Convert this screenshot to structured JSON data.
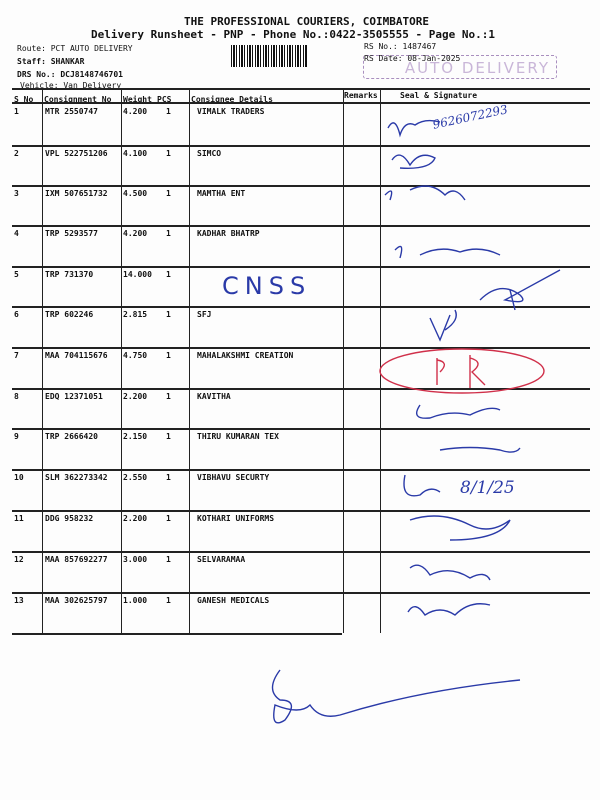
{
  "header": {
    "company": "THE PROFESSIONAL COURIERS, COIMBATORE",
    "subtitle": "Delivery Runsheet - PNP - Phone No.:0422-3505555 - Page No.:1",
    "route": "Route: PCT AUTO DELIVERY",
    "staff": "Staff: SHANKAR",
    "drs": "DRS No.: DCJ8148746701",
    "vehicle": "Vehicle: Van Delivery",
    "rs_no": "RS No.: 1487467",
    "rs_date": "RS Date: 08-Jan-2025",
    "stamp": "AUTO DELIVERY"
  },
  "columns": {
    "sno": "S No",
    "consignment": "Consignment No",
    "weight": "Weight",
    "pcs": "PCS",
    "consignee": "Consignee Details",
    "remarks": "Remarks",
    "seal": "Seal & Signature"
  },
  "rows": [
    {
      "sno": "1",
      "consignment": "MTR 2550747",
      "weight": "4.200",
      "pcs": "1",
      "consignee": "VIMALK TRADERS"
    },
    {
      "sno": "2",
      "consignment": "VPL 522751206",
      "weight": "4.100",
      "pcs": "1",
      "consignee": "SIMCO"
    },
    {
      "sno": "3",
      "consignment": "IXM 507651732",
      "weight": "4.500",
      "pcs": "1",
      "consignee": "MAMTHA ENT"
    },
    {
      "sno": "4",
      "consignment": "TRP 5293577",
      "weight": "4.200",
      "pcs": "1",
      "consignee": "KADHAR BHATRP"
    },
    {
      "sno": "5",
      "consignment": "TRP 731370",
      "weight": "14.000",
      "pcs": "1",
      "consignee": ""
    },
    {
      "sno": "6",
      "consignment": "TRP 602246",
      "weight": "2.815",
      "pcs": "1",
      "consignee": "SFJ"
    },
    {
      "sno": "7",
      "consignment": "MAA 704115676",
      "weight": "4.750",
      "pcs": "1",
      "consignee": "MAHALAKSHMI CREATION"
    },
    {
      "sno": "8",
      "consignment": "EDQ 12371051",
      "weight": "2.200",
      "pcs": "1",
      "consignee": "KAVITHA"
    },
    {
      "sno": "9",
      "consignment": "TRP 2666420",
      "weight": "2.150",
      "pcs": "1",
      "consignee": "THIRU KUMARAN TEX"
    },
    {
      "sno": "10",
      "consignment": "SLM 362273342",
      "weight": "2.550",
      "pcs": "1",
      "consignee": "VIBHAVU SECURTY"
    },
    {
      "sno": "11",
      "consignment": "DDG 958232",
      "weight": "2.200",
      "pcs": "1",
      "consignee": "KOTHARI UNIFORMS"
    },
    {
      "sno": "12",
      "consignment": "MAA 857692277",
      "weight": "3.000",
      "pcs": "1",
      "consignee": "SELVARAMAA"
    },
    {
      "sno": "13",
      "consignment": "MAA 302625797",
      "weight": "1.000",
      "pcs": "1",
      "consignee": "GANESH MEDICALS"
    }
  ],
  "handwritten": {
    "row1_phone": "9626072293",
    "row5_note": "CNSS",
    "row10_date": "8/1/25"
  },
  "colors": {
    "ink": "#2a3aa8",
    "stamp_red": "#d0304a",
    "stamp_purple": "#a98fbf"
  }
}
